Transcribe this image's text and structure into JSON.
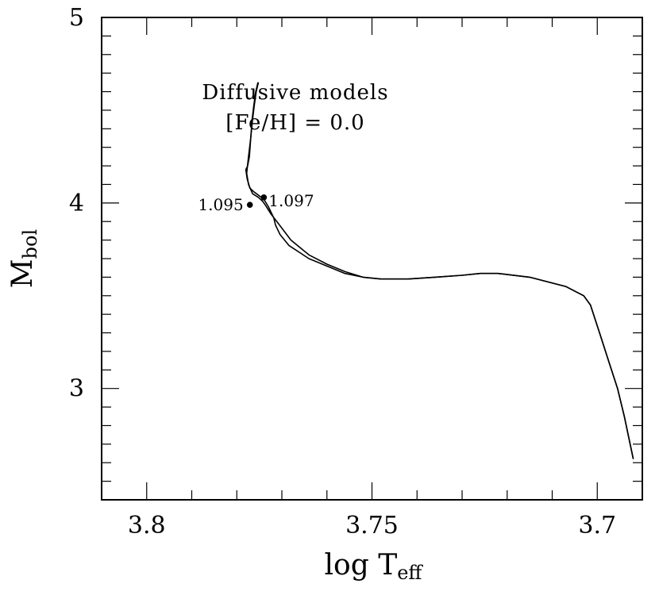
{
  "chart_data": {
    "type": "line",
    "xlabel": "log T",
    "xlabel_sub": "eff",
    "ylabel": "M",
    "ylabel_sub": "bol",
    "xlim": [
      3.81,
      3.69
    ],
    "ylim": [
      5,
      2.4
    ],
    "x_inverted": true,
    "y_inverted": true,
    "x_ticks": [
      3.8,
      3.75,
      3.7
    ],
    "x_tick_labels": [
      "3.8",
      "3.75",
      "3.7"
    ],
    "y_ticks": [
      3,
      4,
      5
    ],
    "y_tick_labels": [
      "3",
      "4",
      "5"
    ],
    "annotation_lines": [
      "Diffusive models",
      "[Fe/H] = 0.0"
    ],
    "series": [
      {
        "x": [
          3.7753,
          3.7758,
          3.7762,
          3.7766,
          3.7769,
          3.7772,
          3.7776,
          3.778,
          3.7777,
          3.7771,
          3.7762,
          3.7751,
          3.774,
          3.773,
          3.7722,
          3.7718,
          3.7716,
          3.7714,
          3.7704,
          3.7684,
          3.764,
          3.76,
          3.756,
          3.752,
          3.748,
          3.742,
          3.736,
          3.73,
          3.726,
          3.722,
          3.715,
          3.707,
          3.703,
          3.7015,
          3.6995,
          3.6975,
          3.6955,
          3.694,
          3.692
        ],
        "y": [
          4.65,
          4.6,
          4.53,
          4.45,
          4.35,
          4.25,
          4.2,
          4.18,
          4.13,
          4.08,
          4.06,
          4.04,
          4.02,
          3.98,
          3.94,
          3.92,
          3.9,
          3.88,
          3.83,
          3.77,
          3.7,
          3.66,
          3.62,
          3.6,
          3.59,
          3.59,
          3.6,
          3.61,
          3.62,
          3.62,
          3.6,
          3.55,
          3.5,
          3.45,
          3.3,
          3.15,
          3.0,
          2.85,
          2.62
        ]
      },
      {
        "x": [
          3.7752,
          3.7757,
          3.7761,
          3.7765,
          3.7769,
          3.7774,
          3.7778,
          3.7774,
          3.7765,
          3.7752,
          3.7743,
          3.7737,
          3.7724,
          3.7705,
          3.768,
          3.764,
          3.76,
          3.756,
          3.752,
          3.748,
          3.742,
          3.736,
          3.73,
          3.726,
          3.722,
          3.715,
          3.707,
          3.703,
          3.7015,
          3.6995,
          3.6975,
          3.6955,
          3.694,
          3.692
        ],
        "y": [
          4.65,
          4.6,
          4.53,
          4.45,
          4.35,
          4.25,
          4.16,
          4.1,
          4.05,
          4.03,
          4.01,
          3.99,
          3.94,
          3.88,
          3.8,
          3.72,
          3.67,
          3.63,
          3.6,
          3.59,
          3.59,
          3.6,
          3.61,
          3.62,
          3.62,
          3.6,
          3.55,
          3.5,
          3.45,
          3.3,
          3.15,
          3.0,
          2.85,
          2.62
        ]
      }
    ],
    "points": [
      {
        "x": 3.7771,
        "y": 3.99,
        "label": "1.095",
        "anchor": "left"
      },
      {
        "x": 3.774,
        "y": 4.03,
        "label": "1.097",
        "anchor": "right"
      }
    ]
  }
}
